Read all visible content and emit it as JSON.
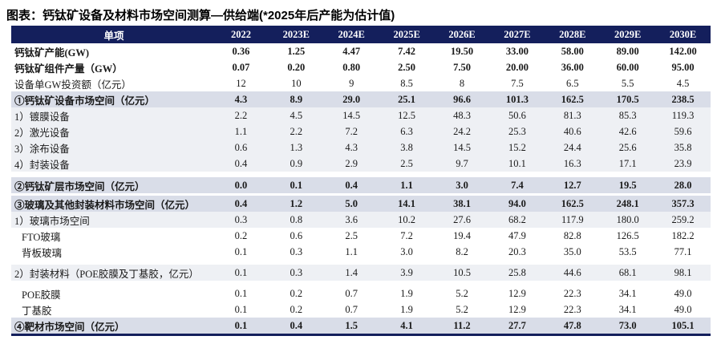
{
  "title": "图表：钙钛矿设备及材料市场空间测算—供给端(*2025年后产能为估计值)",
  "colors": {
    "header_bg": "#141f5c",
    "header_text": "#ffffff",
    "section_row_bg": "#d9dde8",
    "sub_row_bg": "#eef0f4",
    "bottom_border": "#141f5c"
  },
  "chart_data": {
    "type": "table",
    "title": "钙钛矿设备及材料市场空间测算—供给端(*2025年后产能为估计值)",
    "columns": [
      "单项",
      "2022",
      "2023E",
      "2024E",
      "2025E",
      "2026E",
      "2027E",
      "2028E",
      "2029E",
      "2030E"
    ]
  },
  "table": {
    "header": [
      "单项",
      "2022",
      "2023E",
      "2024E",
      "2025E",
      "2026E",
      "2027E",
      "2028E",
      "2029E",
      "2030E"
    ],
    "rows": [
      {
        "label": "钙钛矿产能(GW)",
        "style": "bold-plain",
        "gap_before": 0,
        "values": [
          "0.36",
          "1.25",
          "4.47",
          "7.42",
          "19.50",
          "33.00",
          "58.00",
          "89.00",
          "142.00"
        ]
      },
      {
        "label": "钙钛矿组件产量（GW）",
        "style": "bold-plain",
        "gap_before": 0,
        "values": [
          "0.07",
          "0.20",
          "0.80",
          "2.50",
          "7.50",
          "20.00",
          "36.00",
          "60.00",
          "95.00"
        ]
      },
      {
        "label": "设备单GW投资额（亿元）",
        "style": "plain",
        "gap_before": 0,
        "values": [
          "12",
          "10",
          "9",
          "8.5",
          "8",
          "7.5",
          "6.5",
          "5.5",
          "4.5"
        ]
      },
      {
        "label": "①钙钛矿设备市场空间（亿元）",
        "style": "section",
        "gap_before": 0,
        "values": [
          "4.3",
          "8.9",
          "29.0",
          "25.1",
          "96.6",
          "101.3",
          "162.5",
          "170.5",
          "238.5"
        ]
      },
      {
        "label": "1）镀膜设备",
        "style": "sub",
        "gap_before": 0,
        "values": [
          "2.2",
          "4.5",
          "14.5",
          "12.5",
          "48.3",
          "50.6",
          "81.3",
          "85.3",
          "119.3"
        ]
      },
      {
        "label": "2）激光设备",
        "style": "sub",
        "gap_before": 0,
        "values": [
          "1.1",
          "2.2",
          "7.2",
          "6.3",
          "24.2",
          "25.3",
          "40.6",
          "42.6",
          "59.6"
        ]
      },
      {
        "label": "3）涂布设备",
        "style": "sub",
        "gap_before": 0,
        "values": [
          "0.6",
          "1.3",
          "4.3",
          "3.8",
          "14.5",
          "15.2",
          "24.4",
          "25.6",
          "35.8"
        ]
      },
      {
        "label": "4）封装设备",
        "style": "sub",
        "gap_before": 0,
        "values": [
          "0.4",
          "0.9",
          "2.9",
          "2.5",
          "9.7",
          "10.1",
          "16.3",
          "17.1",
          "23.9"
        ]
      },
      {
        "label": "②钙钛矿层市场空间（亿元）",
        "style": "section",
        "gap_before": 7,
        "values": [
          "0.0",
          "0.1",
          "0.4",
          "1.1",
          "3.0",
          "7.4",
          "12.7",
          "19.5",
          "28.0"
        ]
      },
      {
        "label": "③玻璃及其他封装材料市场空间（亿元）",
        "style": "section",
        "gap_before": 3,
        "values": [
          "0.4",
          "1.2",
          "5.0",
          "14.1",
          "38.1",
          "94.0",
          "162.5",
          "248.1",
          "357.3"
        ]
      },
      {
        "label": "1）玻璃市场空间",
        "style": "sub",
        "gap_before": 0,
        "values": [
          "0.3",
          "0.8",
          "3.6",
          "10.2",
          "27.6",
          "68.2",
          "117.9",
          "180.0",
          "259.2"
        ]
      },
      {
        "label": "FTO玻璃",
        "style": "leaf",
        "gap_before": 0,
        "values": [
          "0.2",
          "0.6",
          "2.5",
          "7.2",
          "19.4",
          "47.9",
          "82.8",
          "126.5",
          "182.2"
        ]
      },
      {
        "label": "背板玻璃",
        "style": "leaf",
        "gap_before": 0,
        "values": [
          "0.1",
          "0.3",
          "1.1",
          "3.0",
          "8.2",
          "20.3",
          "35.0",
          "53.5",
          "77.1"
        ]
      },
      {
        "label": "2）封装材料（POE胶膜及丁基胶，亿元）",
        "style": "sub",
        "gap_before": 6,
        "values": [
          "0.1",
          "0.3",
          "1.4",
          "3.9",
          "10.5",
          "25.8",
          "44.6",
          "68.1",
          "98.1"
        ]
      },
      {
        "label": "POE胶膜",
        "style": "leaf",
        "gap_before": 6,
        "values": [
          "0.1",
          "0.2",
          "0.7",
          "1.9",
          "5.2",
          "12.9",
          "22.3",
          "34.1",
          "49.0"
        ]
      },
      {
        "label": "丁基胶",
        "style": "leaf",
        "gap_before": 0,
        "values": [
          "0.1",
          "0.2",
          "0.7",
          "1.9",
          "5.2",
          "12.9",
          "22.3",
          "34.1",
          "49.0"
        ]
      },
      {
        "label": "④靶材市场空间（亿元）",
        "style": "section",
        "gap_before": 0,
        "values": [
          "0.1",
          "0.4",
          "1.5",
          "4.1",
          "11.2",
          "27.7",
          "47.8",
          "73.0",
          "105.1"
        ]
      }
    ]
  }
}
